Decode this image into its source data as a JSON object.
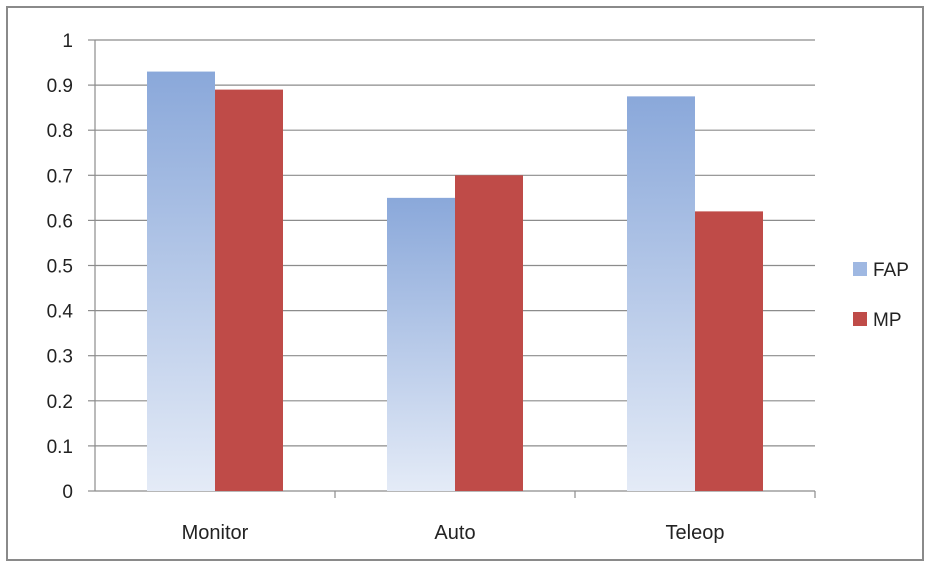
{
  "chart_data": {
    "type": "bar",
    "title": "",
    "xlabel": "",
    "ylabel": "",
    "categories": [
      "Monitor",
      "Auto",
      "Teleop"
    ],
    "series": [
      {
        "name": "FAP",
        "values": [
          0.93,
          0.65,
          0.875
        ],
        "color": "#8fabdc"
      },
      {
        "name": "MP",
        "values": [
          0.89,
          0.7,
          0.62
        ],
        "color": "#bf4b48"
      }
    ],
    "ylim": [
      0,
      1
    ],
    "yticks": [
      "0",
      "0.1",
      "0.2",
      "0.3",
      "0.4",
      "0.5",
      "0.6",
      "0.7",
      "0.8",
      "0.9",
      "1"
    ],
    "grid": true,
    "legend": "right"
  }
}
